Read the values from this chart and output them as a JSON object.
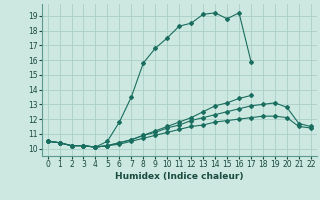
{
  "title": "",
  "xlabel": "Humidex (Indice chaleur)",
  "xlim": [
    -0.5,
    22.5
  ],
  "ylim": [
    9.5,
    19.8
  ],
  "xticks": [
    0,
    1,
    2,
    3,
    4,
    5,
    6,
    7,
    8,
    9,
    10,
    11,
    12,
    13,
    14,
    15,
    16,
    17,
    18,
    19,
    20,
    21,
    22
  ],
  "yticks": [
    10,
    11,
    12,
    13,
    14,
    15,
    16,
    17,
    18,
    19
  ],
  "bg_color": "#cce8e0",
  "grid_color": "#aacfc8",
  "line_color": "#1a6e60",
  "curves": [
    [
      10.5,
      10.4,
      10.2,
      10.2,
      10.1,
      10.5,
      11.8,
      13.5,
      15.8,
      16.8,
      17.5,
      18.3,
      18.5,
      19.1,
      19.2,
      18.8,
      19.2,
      15.9,
      null,
      null,
      null,
      null,
      null
    ],
    [
      10.5,
      10.4,
      10.2,
      10.2,
      10.1,
      10.2,
      10.4,
      10.6,
      10.9,
      11.2,
      11.5,
      11.8,
      12.1,
      12.5,
      12.9,
      13.1,
      13.4,
      13.6,
      null,
      null,
      null,
      null,
      null
    ],
    [
      10.5,
      10.4,
      10.2,
      10.2,
      10.1,
      10.2,
      10.4,
      10.6,
      10.9,
      11.1,
      11.4,
      11.6,
      11.9,
      12.1,
      12.3,
      12.5,
      12.7,
      12.9,
      13.0,
      13.1,
      12.8,
      11.7,
      11.5
    ],
    [
      10.5,
      10.4,
      10.2,
      10.2,
      10.1,
      10.2,
      10.3,
      10.5,
      10.7,
      10.9,
      11.1,
      11.3,
      11.5,
      11.6,
      11.8,
      11.9,
      12.0,
      12.1,
      12.2,
      12.2,
      12.1,
      11.5,
      11.4
    ]
  ]
}
